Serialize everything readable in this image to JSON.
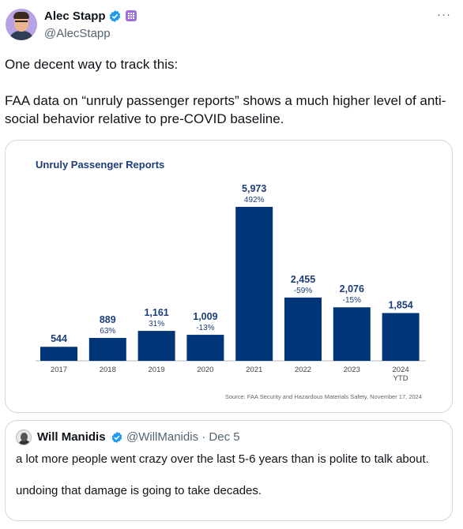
{
  "author": {
    "name": "Alec Stapp",
    "handle": "@AlecStapp",
    "more_label": "···",
    "badge_icon": "verified-badge-icon",
    "org_icon": "affiliate-badge-icon"
  },
  "tweet": {
    "line1": "One decent way to track this:",
    "line2": "FAA data on “unruly passenger reports” shows a much higher level of anti-social behavior relative to pre-COVID baseline."
  },
  "chart_data": {
    "type": "bar",
    "title": "Unruly Passenger Reports",
    "categories": [
      "2017",
      "2018",
      "2019",
      "2020",
      "2021",
      "2022",
      "2023",
      "2024"
    ],
    "category_sublabels": [
      "",
      "",
      "",
      "",
      "",
      "",
      "",
      "YTD"
    ],
    "values": [
      544,
      889,
      1161,
      1009,
      5973,
      2455,
      2076,
      1854
    ],
    "value_labels": [
      "544",
      "889",
      "1,161",
      "1,009",
      "5,973",
      "2,455",
      "2,076",
      "1,854"
    ],
    "change_labels": [
      "",
      "63%",
      "31%",
      "-13%",
      "492%",
      "-59%",
      "-15%",
      ""
    ],
    "bar_color": "#00357a",
    "source": "Source: FAA Security and Hazardous Materials Safety, November 17, 2024"
  },
  "quote": {
    "name": "Will Manidis",
    "handle": "@WillManidis",
    "date": "Dec 5",
    "separator": "·",
    "line1": "a lot more people went crazy over the last 5-6 years than is polite to talk about.",
    "line2": "undoing that damage is going to take decades."
  }
}
